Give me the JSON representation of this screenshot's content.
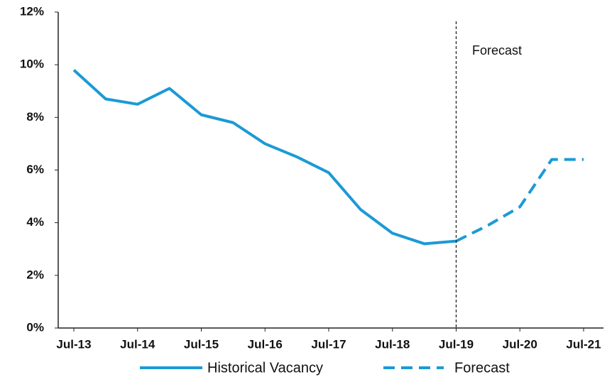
{
  "chart_data": {
    "type": "line",
    "categories": [
      "Jul-13",
      null,
      "Jul-14",
      null,
      "Jul-15",
      null,
      "Jul-16",
      null,
      "Jul-17",
      null,
      "Jul-18",
      null,
      "Jul-19",
      null,
      "Jul-20",
      null,
      "Jul-21"
    ],
    "series": [
      {
        "name": "Historical Vacancy",
        "color": "#1b9ad6",
        "dashed": false,
        "values": [
          9.8,
          8.7,
          8.5,
          9.1,
          8.1,
          7.8,
          7.0,
          6.5,
          5.9,
          4.5,
          3.6,
          3.2,
          3.3,
          null,
          null,
          null,
          null
        ]
      },
      {
        "name": "Forecast",
        "color": "#1b9ad6",
        "dashed": true,
        "values": [
          null,
          null,
          null,
          null,
          null,
          null,
          null,
          null,
          null,
          null,
          null,
          null,
          3.3,
          3.9,
          4.6,
          6.4,
          6.4
        ]
      }
    ],
    "annotation": "Forecast",
    "ylim": [
      0,
      12
    ],
    "yticks": [
      {
        "value": 0,
        "label": "0%"
      },
      {
        "value": 2,
        "label": "2%"
      },
      {
        "value": 4,
        "label": "4%"
      },
      {
        "value": 6,
        "label": "6%"
      },
      {
        "value": 8,
        "label": "8%"
      },
      {
        "value": 10,
        "label": "10%"
      },
      {
        "value": 12,
        "label": "12%"
      }
    ],
    "grid": false
  }
}
